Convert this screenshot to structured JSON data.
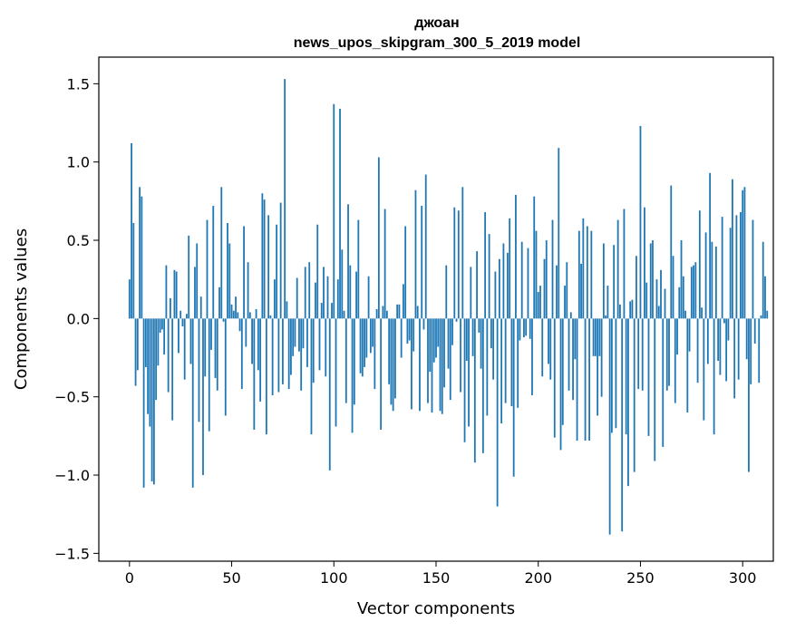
{
  "chart_data": {
    "type": "bar",
    "title": "джоан",
    "subtitle": "news_upos_skipgram_300_5_2019 model",
    "xlabel": "Vector components",
    "ylabel": "Components values",
    "xlim": [
      -15,
      315
    ],
    "ylim": [
      -1.55,
      1.67
    ],
    "xticks": [
      0,
      50,
      100,
      150,
      200,
      250,
      300
    ],
    "yticks": [
      -1.5,
      -1.0,
      -0.5,
      0.0,
      0.5,
      1.0,
      1.5
    ],
    "ytick_labels": [
      "−1.5",
      "−1.0",
      "−0.5",
      "0.0",
      "0.5",
      "1.0",
      "1.5"
    ],
    "bar_color": "#1f77b4",
    "grid": false,
    "values": [
      0.25,
      1.12,
      0.61,
      -0.43,
      -0.33,
      0.84,
      0.78,
      -1.08,
      -0.31,
      -0.61,
      -0.69,
      -1.04,
      -1.06,
      -0.52,
      -0.3,
      -0.09,
      -0.07,
      -0.23,
      0.34,
      -0.47,
      0.13,
      -0.65,
      0.31,
      0.3,
      -0.22,
      0.05,
      -0.05,
      -0.39,
      0.03,
      0.53,
      -0.29,
      -1.08,
      0.33,
      0.48,
      -0.66,
      0.14,
      -1.0,
      -0.37,
      0.63,
      -0.72,
      -0.2,
      0.72,
      -0.38,
      -0.46,
      0.2,
      0.84,
      -0.02,
      -0.62,
      0.61,
      0.48,
      0.09,
      0.05,
      0.14,
      0.04,
      -0.08,
      -0.45,
      0.59,
      -0.18,
      0.36,
      0.04,
      -0.29,
      -0.71,
      0.06,
      -0.33,
      -0.53,
      0.8,
      0.76,
      -0.74,
      0.66,
      0.02,
      -0.49,
      0.25,
      0.6,
      -0.47,
      0.74,
      -0.42,
      1.53,
      0.11,
      -0.45,
      -0.36,
      -0.24,
      -0.18,
      0.26,
      -0.21,
      -0.46,
      -0.19,
      0.33,
      -0.31,
      0.36,
      -0.74,
      -0.41,
      0.23,
      0.6,
      -0.33,
      0.1,
      0.33,
      -0.37,
      0.27,
      -0.97,
      0.1,
      1.37,
      -0.69,
      0.25,
      1.34,
      0.44,
      0.05,
      -0.54,
      0.73,
      0.34,
      -0.73,
      -0.55,
      0.3,
      0.63,
      -0.35,
      -0.37,
      -0.31,
      -0.25,
      0.27,
      -0.22,
      -0.18,
      -0.45,
      0.06,
      1.03,
      -0.71,
      0.08,
      0.7,
      0.05,
      -0.42,
      -0.55,
      -0.59,
      -0.51,
      0.09,
      0.09,
      -0.25,
      0.22,
      0.59,
      -0.16,
      -0.14,
      -0.58,
      -0.21,
      0.82,
      0.08,
      -0.59,
      0.72,
      -0.07,
      0.92,
      -0.54,
      -0.34,
      -0.6,
      -0.28,
      -0.25,
      -0.18,
      -0.59,
      -0.61,
      -0.44,
      0.34,
      -0.32,
      -0.52,
      -0.17,
      0.71,
      -0.02,
      0.69,
      -0.47,
      0.84,
      -0.79,
      -0.27,
      -0.69,
      0.33,
      -0.24,
      -0.92,
      0.43,
      -0.09,
      -0.32,
      -0.86,
      0.68,
      -0.62,
      0.54,
      -0.19,
      -0.39,
      0.3,
      -1.2,
      0.38,
      -0.67,
      0.48,
      -0.54,
      0.42,
      0.64,
      -0.56,
      -1.01,
      0.79,
      -0.57,
      -0.14,
      0.49,
      -0.12,
      -0.11,
      0.45,
      -0.13,
      -0.49,
      0.78,
      0.56,
      0.17,
      0.21,
      -0.37,
      0.38,
      0.5,
      -0.29,
      -0.39,
      0.63,
      -0.76,
      0.34,
      1.09,
      -0.84,
      -0.68,
      0.21,
      0.36,
      -0.46,
      0.04,
      -0.52,
      -0.26,
      -0.78,
      0.56,
      0.35,
      0.64,
      -0.78,
      0.59,
      -0.78,
      0.56,
      -0.24,
      -0.24,
      -0.62,
      -0.24,
      -0.5,
      0.48,
      0.02,
      0.21,
      -1.38,
      -0.73,
      0.47,
      -0.7,
      0.63,
      0.09,
      -1.36,
      0.7,
      -0.74,
      -1.07,
      0.11,
      0.12,
      -0.98,
      0.4,
      -0.45,
      1.23,
      -0.46,
      0.71,
      0.23,
      -0.75,
      0.48,
      0.5,
      -0.91,
      0.25,
      0.08,
      0.31,
      -0.82,
      0.19,
      -0.46,
      -0.43,
      0.85,
      0.4,
      -0.54,
      -0.23,
      0.2,
      0.5,
      0.27,
      0.05,
      -0.6,
      -0.21,
      0.33,
      0.34,
      0.36,
      -0.41,
      0.69,
      0.07,
      -0.65,
      0.55,
      -0.29,
      0.93,
      0.49,
      -0.74,
      0.46,
      -0.27,
      -0.36,
      0.65,
      -0.03,
      -0.4,
      -0.14,
      0.58,
      0.89,
      -0.51,
      0.66,
      -0.39,
      0.68,
      0.82,
      0.84,
      -0.26,
      -0.98,
      -0.42,
      0.63,
      -0.16,
      0.0,
      -0.41,
      0.02,
      0.49,
      0.27,
      0.05
    ]
  }
}
